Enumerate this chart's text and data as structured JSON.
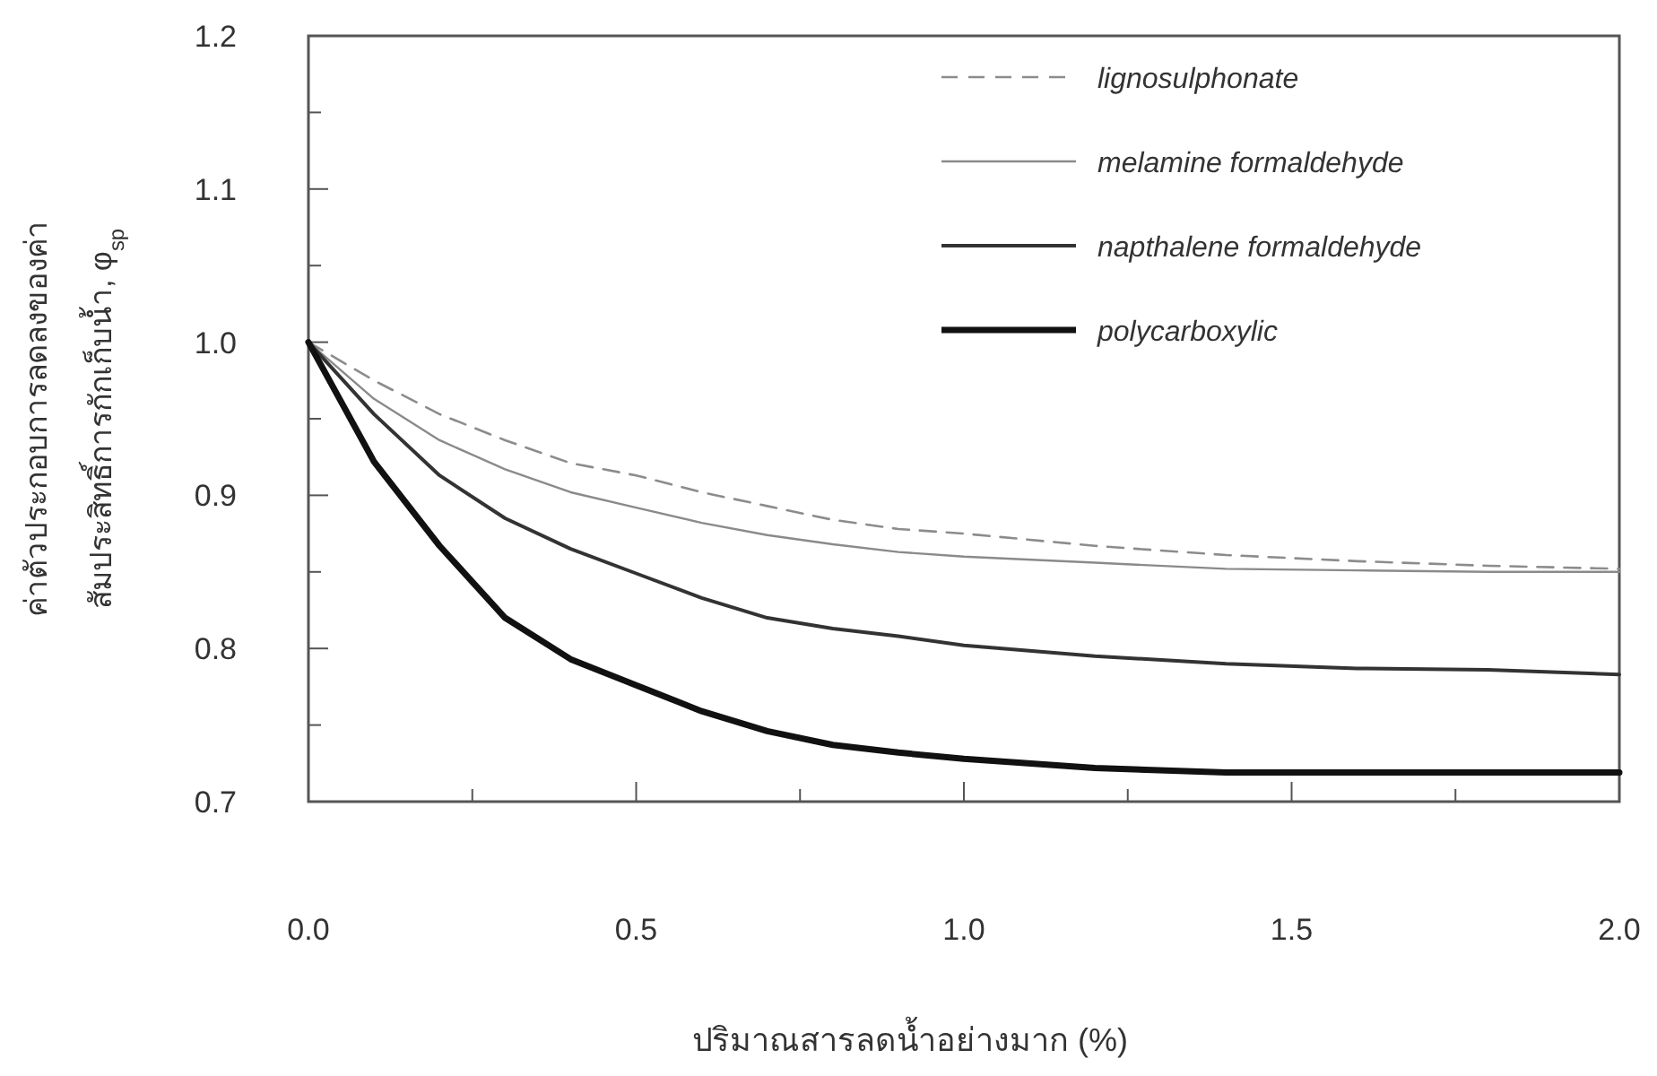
{
  "chart_data": {
    "type": "line",
    "xlabel": "ปริมาณสารลดน้ำอย่างมาก (%)",
    "ylabel": "ค่าตัวประกอบการลดลงของค่า\nสัมประสิทธิ์การกักเก็บน้ำ, φ$_{sp}$",
    "x": [
      0,
      0.1,
      0.2,
      0.3,
      0.4,
      0.5,
      0.6,
      0.7,
      0.8,
      0.9,
      1.0,
      1.2,
      1.4,
      1.6,
      1.8,
      2.0
    ],
    "xlim": [
      0,
      2
    ],
    "xticks": [
      {
        "value": 0,
        "label": "0.0"
      },
      {
        "value": 0.25,
        "label": null
      },
      {
        "value": 0.5,
        "label": "0.5"
      },
      {
        "value": 0.75,
        "label": null
      },
      {
        "value": 1,
        "label": "1.0"
      },
      {
        "value": 1.25,
        "label": null
      },
      {
        "value": 1.5,
        "label": "1.5"
      },
      {
        "value": 1.75,
        "label": null
      },
      {
        "value": 2,
        "label": "2.0"
      }
    ],
    "ylim": [
      0.7,
      1.2
    ],
    "yticks": [
      0.7,
      {
        "value": 0.75,
        "label": null
      },
      0.8,
      {
        "value": 0.85,
        "label": null
      },
      0.9,
      {
        "value": 0.95,
        "label": null
      },
      {
        "value": 1.0,
        "label": "1.0"
      },
      {
        "value": 1.05,
        "label": null
      },
      1.1,
      {
        "value": 1.15,
        "label": null
      },
      1.2
    ],
    "grid": false,
    "legend": "top right",
    "marker": "none",
    "series": [
      {
        "name": "lignosulphonate",
        "color": "#8c8c8c",
        "line_style": "dashed",
        "values": [
          1.0,
          0.975,
          0.953,
          0.936,
          0.921,
          0.913,
          0.902,
          0.893,
          0.884,
          0.878,
          0.875,
          0.867,
          0.861,
          0.857,
          0.854,
          0.852
        ]
      },
      {
        "name": "melamine formaldehyde",
        "color": "#8a8a8a",
        "line_style": "solid",
        "values": [
          1.0,
          0.963,
          0.936,
          0.917,
          0.902,
          0.892,
          0.882,
          0.874,
          0.868,
          0.863,
          0.86,
          0.856,
          0.852,
          0.851,
          0.85,
          0.85
        ]
      },
      {
        "name": "napthalene formaldehyde",
        "color": "#333333",
        "line_style": "solid",
        "values": [
          1.0,
          0.953,
          0.913,
          0.885,
          0.865,
          0.849,
          0.833,
          0.82,
          0.813,
          0.808,
          0.802,
          0.795,
          0.79,
          0.787,
          0.786,
          0.783
        ]
      },
      {
        "name": "polycarboxylic",
        "color": "#111111",
        "line_style": "solid",
        "values": [
          1.0,
          0.922,
          0.867,
          0.82,
          0.793,
          0.776,
          0.759,
          0.746,
          0.737,
          0.732,
          0.728,
          0.722,
          0.719,
          0.719,
          0.719,
          0.719
        ]
      }
    ]
  }
}
